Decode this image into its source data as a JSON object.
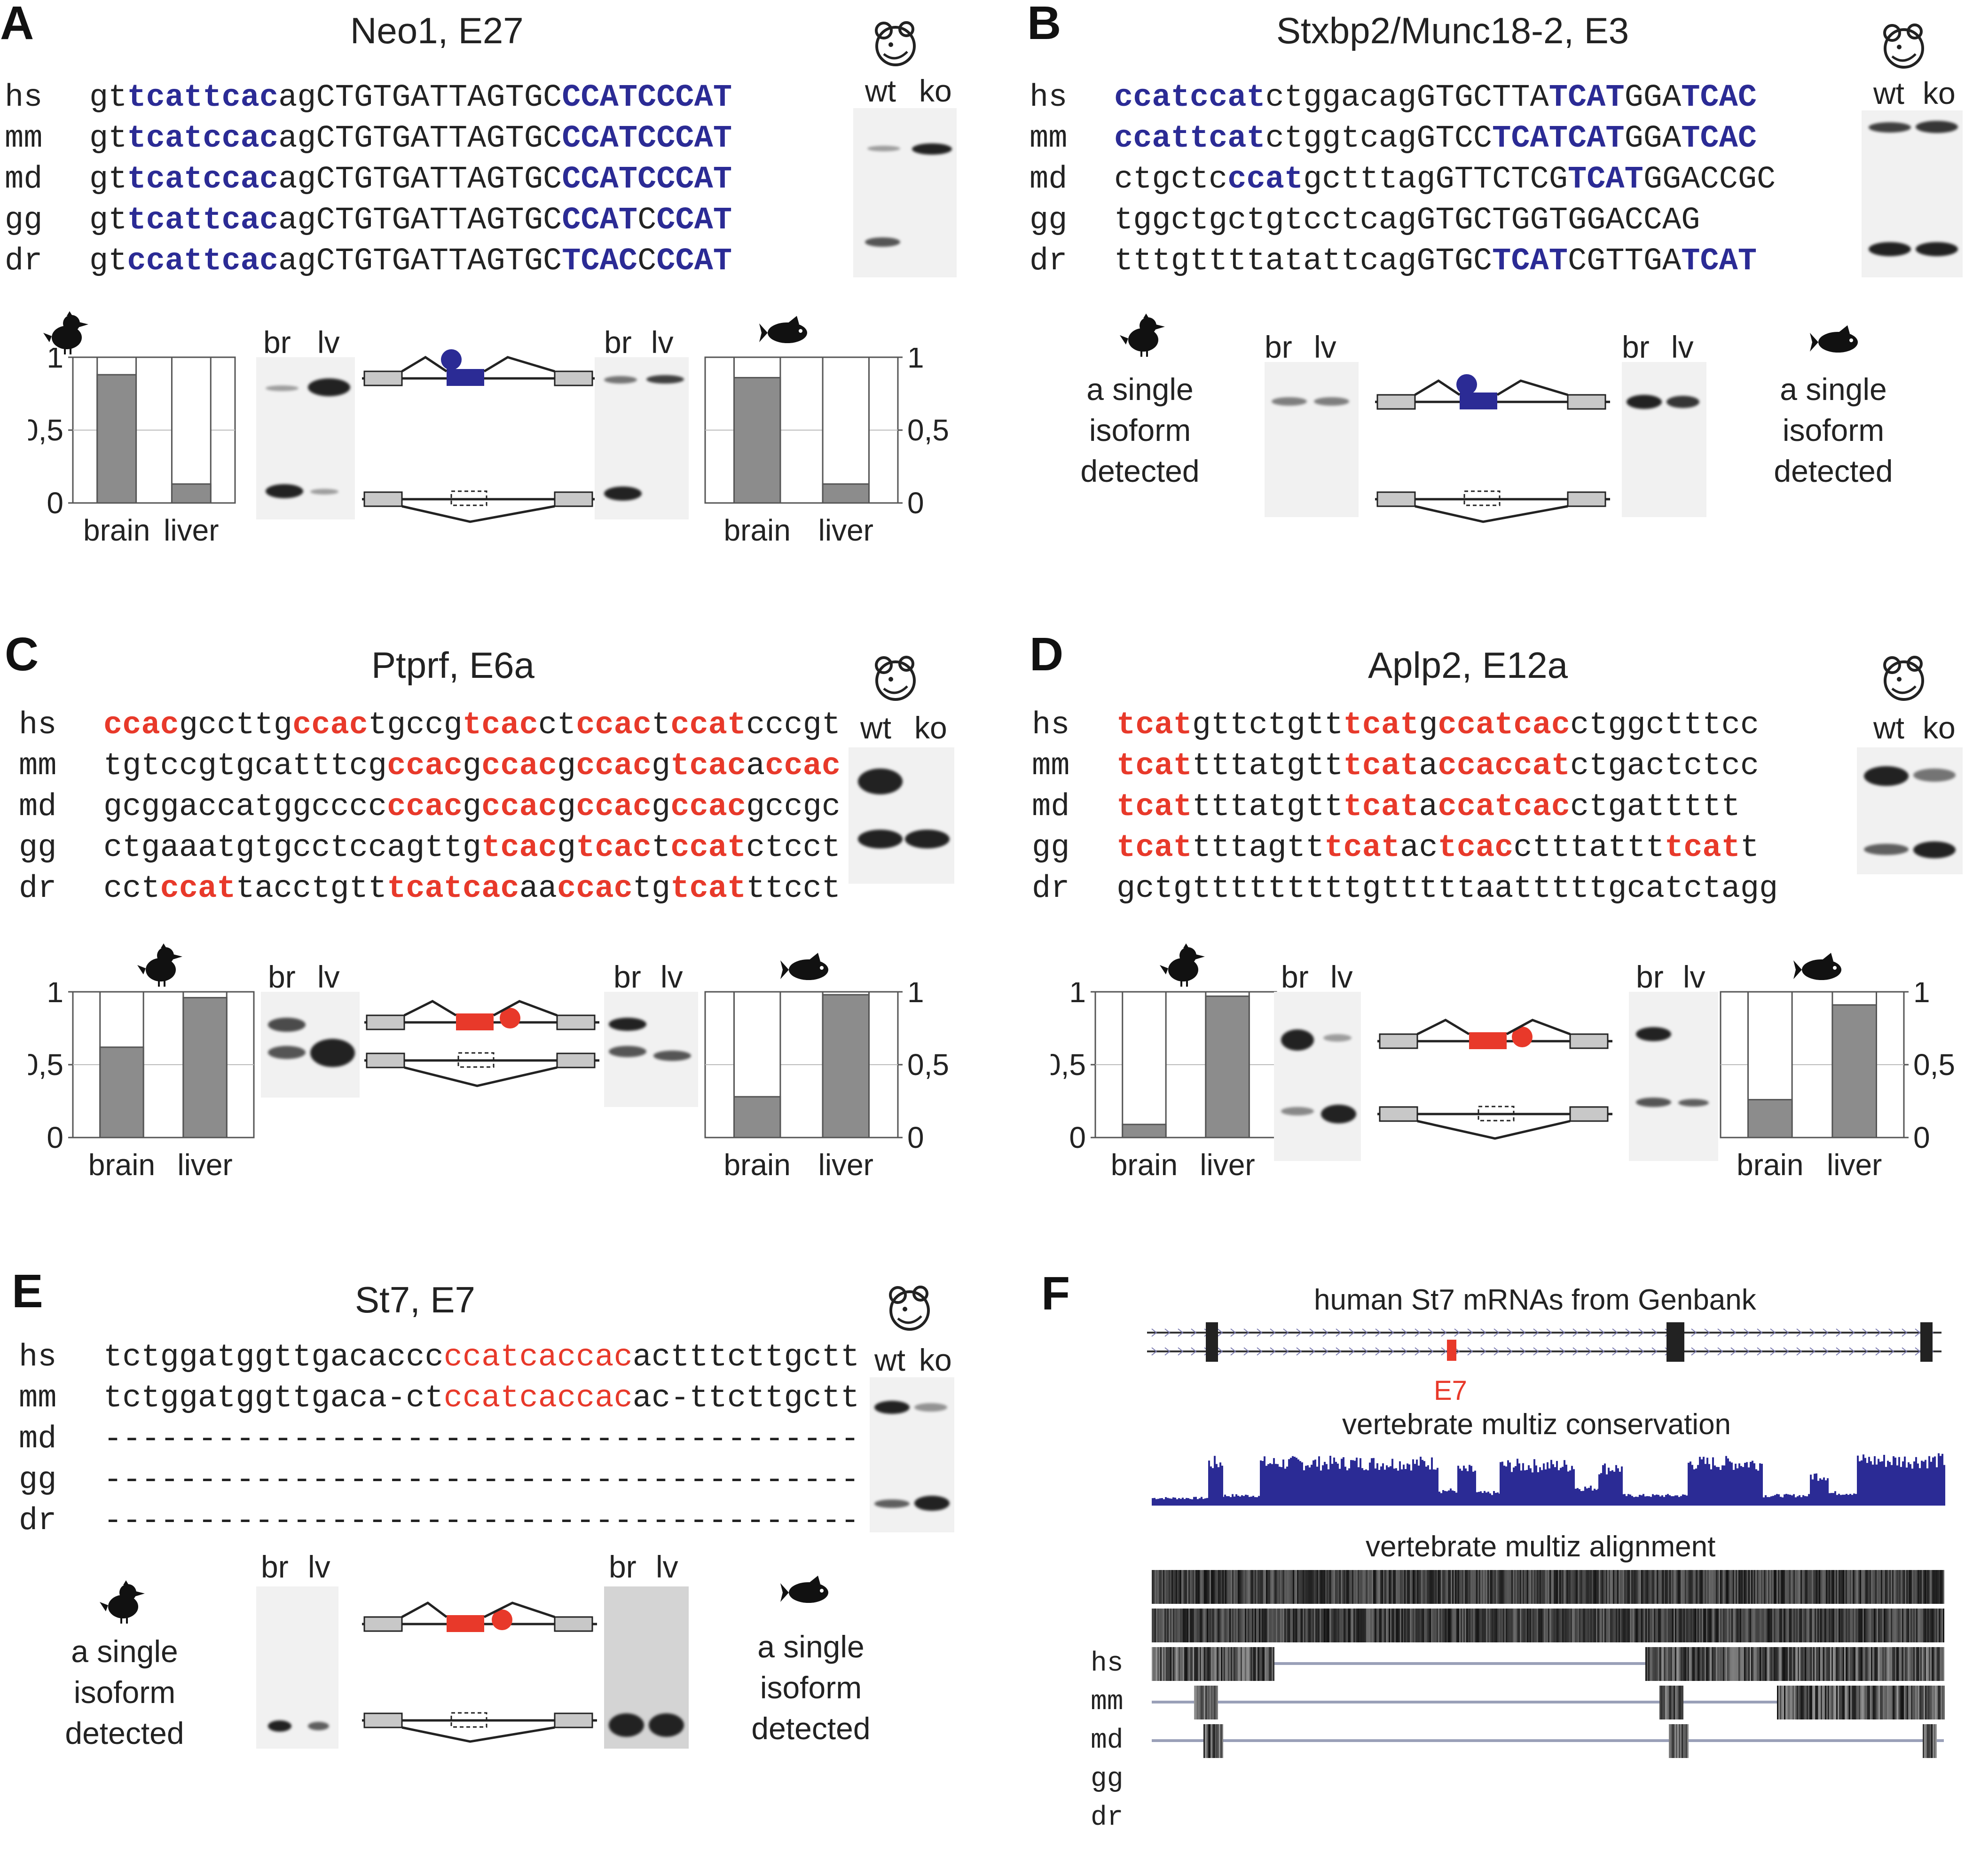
{
  "panels": {
    "A": {
      "letter": "A",
      "title": "Neo1, E27",
      "species": [
        "hs",
        "mm",
        "md",
        "gg",
        "dr"
      ],
      "sequences": [
        [
          [
            "gt",
            ""
          ],
          [
            "tcattcac",
            "b"
          ],
          [
            "agCTGTGATTAGTGC",
            ""
          ],
          [
            "CCAT",
            "b"
          ],
          [
            "CCCAT",
            "b"
          ]
        ],
        [
          [
            "gt",
            ""
          ],
          [
            "tcatccac",
            "b"
          ],
          [
            "agCTGTGATTAGTGC",
            ""
          ],
          [
            "CCATCCCAT",
            "b"
          ]
        ],
        [
          [
            "gt",
            ""
          ],
          [
            "tcatccac",
            "b"
          ],
          [
            "agCTGTGATTAGTGC",
            ""
          ],
          [
            "CCATCCCAT",
            "b"
          ]
        ],
        [
          [
            "gt",
            ""
          ],
          [
            "tcattcac",
            "b"
          ],
          [
            "agCTGTGATTAGTGC",
            ""
          ],
          [
            "CCAT",
            "b"
          ],
          [
            "C",
            ""
          ],
          [
            "CCAT",
            "b"
          ]
        ],
        [
          [
            "gt",
            ""
          ],
          [
            "ccattcac",
            "b"
          ],
          [
            "agCTGTGATTAGTGC",
            ""
          ],
          [
            "TCAC",
            "b"
          ],
          [
            "C",
            ""
          ],
          [
            "CCAT",
            "b"
          ]
        ]
      ],
      "gel_labels": [
        "wt",
        "ko"
      ],
      "lane_labels": [
        "br",
        "lv"
      ],
      "bar_left": {
        "brain": 0.88,
        "liver": 0.13
      },
      "bar_right": {
        "brain": 0.86,
        "liver": 0.13
      },
      "x_labels": [
        "brain",
        "liver"
      ],
      "y_ticks": [
        "1",
        "0,5",
        "0"
      ]
    },
    "B": {
      "letter": "B",
      "title": "Stxbp2/Munc18-2, E3",
      "species": [
        "hs",
        "mm",
        "md",
        "gg",
        "dr"
      ],
      "sequences": [
        [
          [
            "ccatccat",
            "b"
          ],
          [
            "ctggacagGTGCTTA",
            ""
          ],
          [
            "TCAT",
            "b"
          ],
          [
            "GGA",
            ""
          ],
          [
            "TCAC",
            "b"
          ]
        ],
        [
          [
            "ccattcat",
            "b"
          ],
          [
            "ctggtcagGTCC",
            ""
          ],
          [
            "TCATCAT",
            "b"
          ],
          [
            "GGA",
            ""
          ],
          [
            "TCAC",
            "b"
          ]
        ],
        [
          [
            "ctgctc",
            ""
          ],
          [
            "ccat",
            "b"
          ],
          [
            "gctttagGTTCTCG",
            ""
          ],
          [
            "TCAT",
            "b"
          ],
          [
            "GGACCGC",
            ""
          ]
        ],
        [
          [
            "tggctgctgtcctcagGTGCTGGTGGACCAG",
            ""
          ]
        ],
        [
          [
            "tttgttttatattcagGTGC",
            ""
          ],
          [
            "TCAT",
            "b"
          ],
          [
            "CGTTGA",
            ""
          ],
          [
            "TCAT",
            "b"
          ]
        ]
      ],
      "gel_labels": [
        "wt",
        "ko"
      ],
      "lane_labels": [
        "br",
        "lv"
      ],
      "single_isoform_text": [
        "a single",
        "isoform",
        "detected"
      ]
    },
    "C": {
      "letter": "C",
      "title": "Ptprf, E6a",
      "species": [
        "hs",
        "mm",
        "md",
        "gg",
        "dr"
      ],
      "sequences": [
        [
          [
            "ccac",
            "r"
          ],
          [
            "gccttg",
            ""
          ],
          [
            "ccac",
            "r"
          ],
          [
            "tgccg",
            ""
          ],
          [
            "tcac",
            "r"
          ],
          [
            "ct",
            ""
          ],
          [
            "ccac",
            "r"
          ],
          [
            "t",
            ""
          ],
          [
            "ccat",
            "r"
          ],
          [
            "cccgt",
            ""
          ]
        ],
        [
          [
            "tgtccgtgcatttcg",
            ""
          ],
          [
            "ccac",
            "r"
          ],
          [
            "g",
            ""
          ],
          [
            "ccac",
            "r"
          ],
          [
            "g",
            ""
          ],
          [
            "ccac",
            "r"
          ],
          [
            "g",
            ""
          ],
          [
            "tcac",
            "r"
          ],
          [
            "a",
            ""
          ],
          [
            "ccac",
            "r"
          ]
        ],
        [
          [
            "gcggaccatggcccc",
            ""
          ],
          [
            "ccac",
            "r"
          ],
          [
            "g",
            ""
          ],
          [
            "ccac",
            "r"
          ],
          [
            "g",
            ""
          ],
          [
            "ccac",
            "r"
          ],
          [
            "g",
            ""
          ],
          [
            "ccac",
            "r"
          ],
          [
            "gccgc",
            ""
          ]
        ],
        [
          [
            "ctgaaatgtgcctccagttg",
            ""
          ],
          [
            "tcac",
            "r"
          ],
          [
            "g",
            ""
          ],
          [
            "tcac",
            "r"
          ],
          [
            "t",
            ""
          ],
          [
            "ccat",
            "r"
          ],
          [
            "ctcct",
            ""
          ]
        ],
        [
          [
            "cct",
            ""
          ],
          [
            "ccat",
            "r"
          ],
          [
            "tacctgtt",
            ""
          ],
          [
            "tcatcac",
            "r"
          ],
          [
            "aa",
            ""
          ],
          [
            "ccac",
            "r"
          ],
          [
            "tg",
            ""
          ],
          [
            "tcat",
            "r"
          ],
          [
            "ttcct",
            ""
          ]
        ]
      ],
      "gel_labels": [
        "wt",
        "ko"
      ],
      "lane_labels": [
        "br",
        "lv"
      ],
      "bar_left": {
        "brain": 0.62,
        "liver": 0.96
      },
      "bar_right": {
        "brain": 0.28,
        "liver": 0.98
      },
      "x_labels": [
        "brain",
        "liver"
      ],
      "y_ticks": [
        "1",
        "0,5",
        "0"
      ]
    },
    "D": {
      "letter": "D",
      "title": "Aplp2, E12a",
      "species": [
        "hs",
        "mm",
        "md",
        "gg",
        "dr"
      ],
      "sequences": [
        [
          [
            "tcat",
            "r"
          ],
          [
            "gttctgtt",
            ""
          ],
          [
            "tcat",
            "r"
          ],
          [
            "g",
            ""
          ],
          [
            "ccatcac",
            "r"
          ],
          [
            "ctggctttcc",
            ""
          ]
        ],
        [
          [
            "tcat",
            "r"
          ],
          [
            "tttatgtt",
            ""
          ],
          [
            "tcat",
            "r"
          ],
          [
            "a",
            ""
          ],
          [
            "ccaccat",
            "r"
          ],
          [
            "ctgactctcc",
            ""
          ]
        ],
        [
          [
            "tcat",
            "r"
          ],
          [
            "tttatgtt",
            ""
          ],
          [
            "tcat",
            "r"
          ],
          [
            "a",
            ""
          ],
          [
            "ccatcac",
            "r"
          ],
          [
            "ctgattttt",
            ""
          ]
        ],
        [
          [
            "tcat",
            "r"
          ],
          [
            "tttagtt",
            ""
          ],
          [
            "tcat",
            "r"
          ],
          [
            "ac",
            ""
          ],
          [
            "tcac",
            "r"
          ],
          [
            "ctttattt",
            ""
          ],
          [
            "tcat",
            "r"
          ],
          [
            "t",
            ""
          ]
        ],
        [
          [
            "gctgtttttttttgtttttaatttttgcatctagg",
            ""
          ]
        ]
      ],
      "gel_labels": [
        "wt",
        "ko"
      ],
      "lane_labels": [
        "br",
        "lv"
      ],
      "bar_left": {
        "brain": 0.09,
        "liver": 0.97
      },
      "bar_right": {
        "brain": 0.26,
        "liver": 0.91
      },
      "x_labels": [
        "brain",
        "liver"
      ],
      "y_ticks": [
        "1",
        "0,5",
        "0"
      ]
    },
    "E": {
      "letter": "E",
      "title": "St7, E7",
      "species": [
        "hs",
        "mm",
        "md",
        "gg",
        "dr"
      ],
      "sequences": [
        [
          [
            "tctggatggttgacaccc",
            ""
          ],
          [
            "ccatcaccac",
            "rp"
          ],
          [
            "actttcttgctt",
            ""
          ]
        ],
        [
          [
            "tctggatggttgaca-ct",
            ""
          ],
          [
            "ccatcaccac",
            "rp"
          ],
          [
            "ac-ttcttgctt",
            ""
          ]
        ],
        [
          [
            "----------------------------------------",
            ""
          ]
        ],
        [
          [
            "----------------------------------------",
            ""
          ]
        ],
        [
          [
            "----------------------------------------",
            ""
          ]
        ]
      ],
      "gel_labels": [
        "wt",
        "ko"
      ],
      "lane_labels": [
        "br",
        "lv"
      ],
      "single_isoform_text": [
        "a single",
        "isoform",
        "detected"
      ]
    },
    "F": {
      "letter": "F",
      "track1_title": "human St7 mRNAs from Genbank",
      "exon_label": "E7",
      "track2_title": "vertebrate multiz conservation",
      "track3_title": "vertebrate multiz alignment",
      "species": [
        "hs",
        "mm",
        "md",
        "gg",
        "dr"
      ]
    }
  },
  "colors": {
    "blue": "#2b2b95",
    "red": "#e8392a",
    "grey": "#8c8c8c",
    "exon_grey": "#c8c8c8"
  }
}
